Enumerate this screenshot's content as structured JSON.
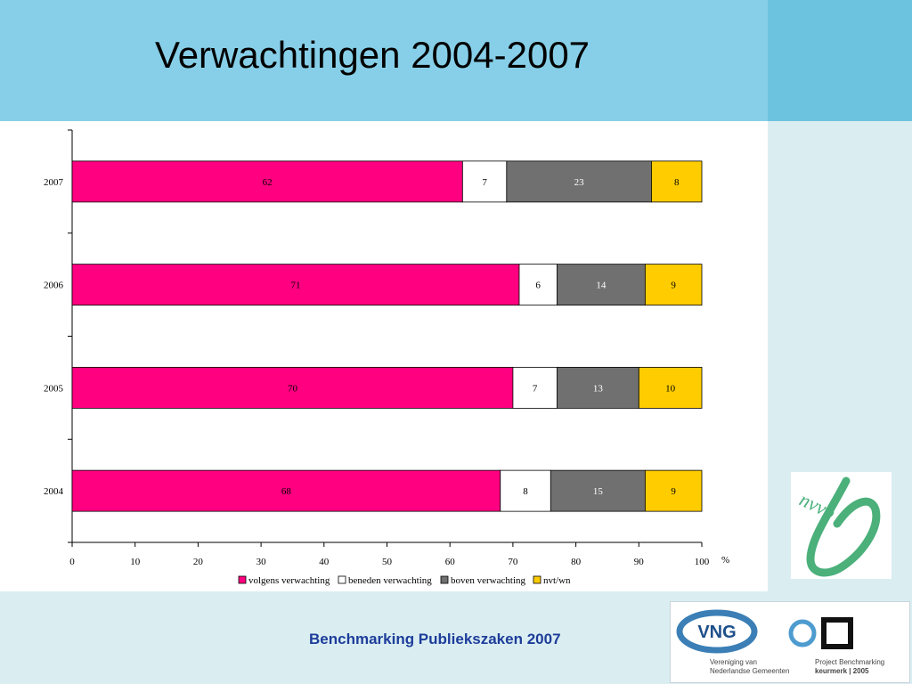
{
  "slide": {
    "title": "Verwachtingen 2004-2007",
    "footer": "Benchmarking Publiekszaken 2007"
  },
  "logos": {
    "nvb_text": "nvvb",
    "vng_text": "VNG",
    "vng_sub_line1": "Vereniging van",
    "vng_sub_line2": "Nederlandse Gemeenten",
    "project_line1": "Project Benchmarking",
    "project_line2": "keurmerk | 2005"
  },
  "chart_data": {
    "type": "bar",
    "orientation": "horizontal",
    "stacked": true,
    "categories": [
      "2007",
      "2006",
      "2005",
      "2004"
    ],
    "series": [
      {
        "name": "volgens verwachting",
        "color": "#ff0080",
        "values": [
          62,
          71,
          70,
          68
        ]
      },
      {
        "name": "beneden verwachting",
        "color": "#ffffff",
        "values": [
          7,
          6,
          7,
          8
        ]
      },
      {
        "name": "boven verwachting",
        "color": "#707070",
        "values": [
          23,
          14,
          13,
          15
        ]
      },
      {
        "name": "nvt/wn",
        "color": "#ffcc00",
        "values": [
          8,
          9,
          10,
          9
        ]
      }
    ],
    "xlim": [
      0,
      100
    ],
    "xticks": [
      0,
      10,
      20,
      30,
      40,
      50,
      60,
      70,
      80,
      90,
      100
    ],
    "xlabel": "%",
    "legend": "bottom",
    "grid": false
  }
}
